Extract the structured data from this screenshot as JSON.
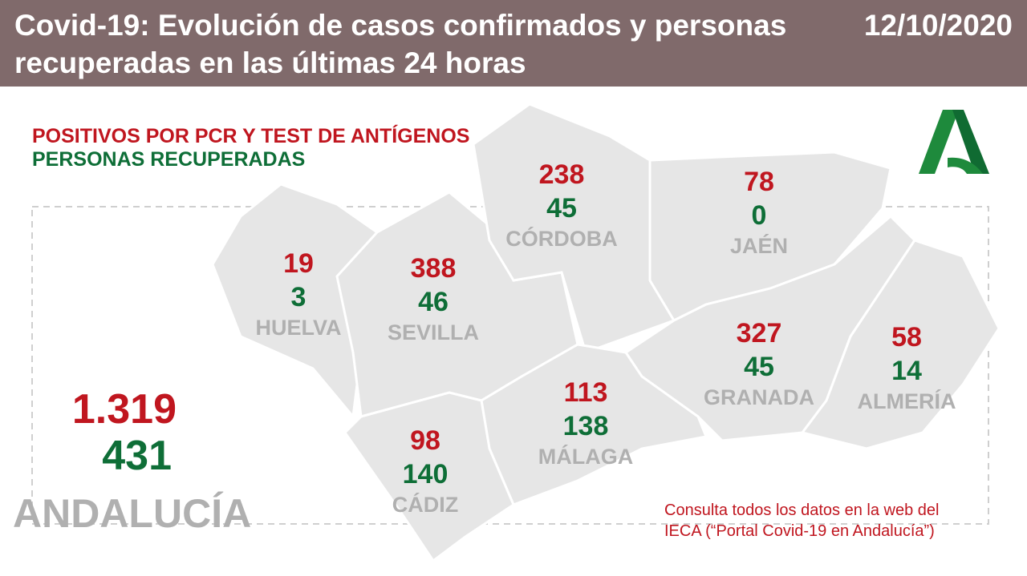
{
  "header": {
    "title": "Covid-19: Evolución de casos confirmados y personas recuperadas en las últimas 24 horas",
    "date": "12/10/2020"
  },
  "legend": {
    "positives": "POSITIVOS POR PCR Y TEST DE ANTÍGENOS",
    "recovered": "PERSONAS RECUPERADAS"
  },
  "colors": {
    "header": "#806a6b",
    "positives": "#c0161f",
    "recovered": "#0e6e37",
    "map": "#e6e6e6",
    "label": "#b0b0b0"
  },
  "provinces": [
    {
      "name": "HUELVA",
      "positives": "19",
      "recovered": "3"
    },
    {
      "name": "SEVILLA",
      "positives": "388",
      "recovered": "46"
    },
    {
      "name": "CÓRDOBA",
      "positives": "238",
      "recovered": "45"
    },
    {
      "name": "JAÉN",
      "positives": "78",
      "recovered": "0"
    },
    {
      "name": "GRANADA",
      "positives": "327",
      "recovered": "45"
    },
    {
      "name": "ALMERÍA",
      "positives": "58",
      "recovered": "14"
    },
    {
      "name": "MÁLAGA",
      "positives": "113",
      "recovered": "138"
    },
    {
      "name": "CÁDIZ",
      "positives": "98",
      "recovered": "140"
    }
  ],
  "total": {
    "region": "ANDALUCÍA",
    "positives": "1.319",
    "recovered": "431"
  },
  "note": {
    "line1": "Consulta todos los datos en la web del",
    "line2": "IECA (“Portal Covid-19 en Andalucía”)"
  },
  "logo": {
    "icon": "junta-de-andalucia-logo",
    "text": "A"
  }
}
